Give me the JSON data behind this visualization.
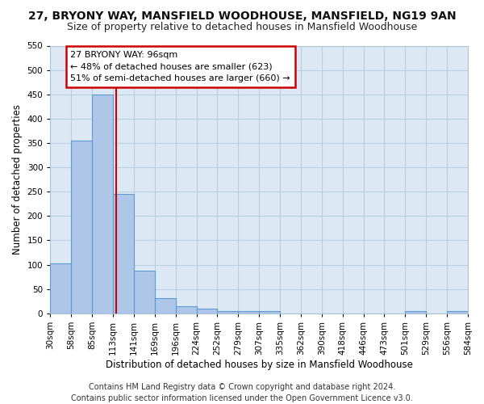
{
  "title": "27, BRYONY WAY, MANSFIELD WOODHOUSE, MANSFIELD, NG19 9AN",
  "subtitle": "Size of property relative to detached houses in Mansfield Woodhouse",
  "xlabel": "Distribution of detached houses by size in Mansfield Woodhouse",
  "ylabel": "Number of detached properties",
  "footer_line1": "Contains HM Land Registry data © Crown copyright and database right 2024.",
  "footer_line2": "Contains public sector information licensed under the Open Government Licence v3.0.",
  "annotation_line1": "27 BRYONY WAY: 96sqm",
  "annotation_line2": "← 48% of detached houses are smaller (623)",
  "annotation_line3": "51% of semi-detached houses are larger (660) →",
  "bar_values": [
    102,
    355,
    449,
    245,
    88,
    31,
    15,
    9,
    5,
    5,
    5,
    0,
    0,
    0,
    0,
    0,
    0,
    5,
    0,
    5
  ],
  "bin_labels": [
    "30sqm",
    "58sqm",
    "85sqm",
    "113sqm",
    "141sqm",
    "169sqm",
    "196sqm",
    "224sqm",
    "252sqm",
    "279sqm",
    "307sqm",
    "335sqm",
    "362sqm",
    "390sqm",
    "418sqm",
    "446sqm",
    "473sqm",
    "501sqm",
    "529sqm",
    "556sqm",
    "584sqm"
  ],
  "bar_color": "#aec6e8",
  "bar_edge_color": "#5b9bd5",
  "bar_edge_width": 0.8,
  "vline_x": 2.65,
  "vline_color": "#cc0000",
  "ylim": [
    0,
    550
  ],
  "yticks": [
    0,
    50,
    100,
    150,
    200,
    250,
    300,
    350,
    400,
    450,
    500,
    550
  ],
  "ax_background_color": "#dce9f5",
  "background_color": "#ffffff",
  "grid_color": "#b8cfe0",
  "annotation_box_color": "#ffffff",
  "annotation_box_edge": "#cc0000",
  "title_fontsize": 10,
  "subtitle_fontsize": 9,
  "axis_label_fontsize": 8.5,
  "tick_fontsize": 7.5,
  "annotation_fontsize": 8,
  "footer_fontsize": 7
}
